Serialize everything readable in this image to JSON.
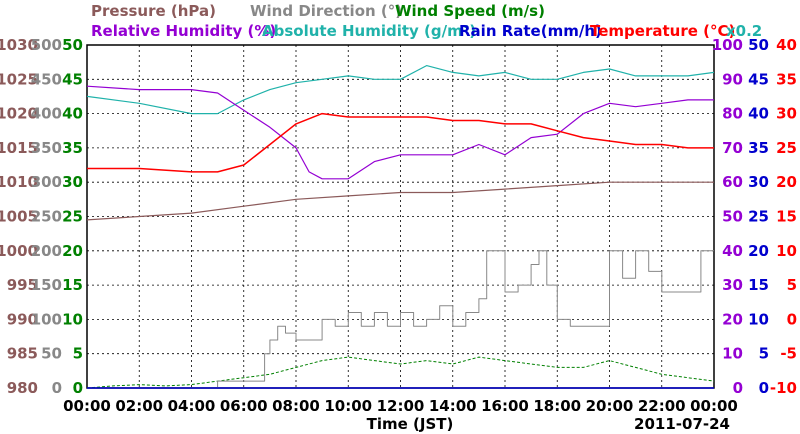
{
  "chart_data": {
    "type": "line",
    "date_label": "2011-07-24",
    "xlabel": "Time (JST)",
    "x_ticks": [
      "00:00",
      "02:00",
      "04:00",
      "06:00",
      "08:00",
      "10:00",
      "12:00",
      "14:00",
      "16:00",
      "18:00",
      "20:00",
      "22:00",
      "00:00"
    ],
    "x_range_hours": [
      0,
      24
    ],
    "grid": true,
    "legend_row1": [
      {
        "name": "Pressure (hPa)",
        "color": "#8b5a5a"
      },
      {
        "name": "Wind Direction (°)",
        "color": "#888888"
      },
      {
        "name": "Wind Speed (m/s)",
        "color": "#008000"
      }
    ],
    "legend_row2": [
      {
        "name": "Relative Humidity (%)",
        "color": "#9400d3"
      },
      {
        "name": "Absolute Humidity (g/m³)",
        "color": "#20b2aa"
      },
      {
        "name": "Rain Rate(mm/h)",
        "color": "#0000cd"
      },
      {
        "name": "Temperature (°C)",
        "color": "#ff0000"
      }
    ],
    "scale_note": "x0.2",
    "axes": {
      "pressure": {
        "color": "#8b5a5a",
        "ticks": [
          "980",
          "985",
          "990",
          "995",
          "1000",
          "1005",
          "1010",
          "1015",
          "1020",
          "1025",
          "1030"
        ],
        "range": [
          980,
          1030
        ]
      },
      "wind_direction": {
        "color": "#888888",
        "ticks": [
          "0",
          "50",
          "100",
          "150",
          "200",
          "250",
          "300",
          "350",
          "400",
          "450",
          "500"
        ],
        "range": [
          0,
          500
        ]
      },
      "wind_speed": {
        "color": "#008000",
        "ticks": [
          "0",
          "5",
          "10",
          "15",
          "20",
          "25",
          "30",
          "35",
          "40",
          "45",
          "50"
        ],
        "range": [
          0,
          50
        ]
      },
      "humidity": {
        "color": "#9400d3",
        "ticks": [
          "0",
          "10",
          "20",
          "30",
          "40",
          "50",
          "60",
          "70",
          "80",
          "90",
          "100"
        ],
        "range": [
          0,
          100
        ]
      },
      "rain_rate": {
        "color": "#0000cd",
        "ticks": [
          "0",
          "5",
          "10",
          "15",
          "20",
          "25",
          "30",
          "35",
          "40",
          "45",
          "50"
        ],
        "range": [
          0,
          50
        ]
      },
      "temperature": {
        "color": "#ff0000",
        "ticks": [
          "-10",
          "-5",
          "0",
          "5",
          "10",
          "15",
          "20",
          "25",
          "30",
          "35",
          "40"
        ],
        "range": [
          -10,
          40
        ]
      }
    },
    "series": [
      {
        "name": "Pressure (hPa)",
        "color": "#8b5a5a",
        "axis": "pressure",
        "x": [
          0,
          2,
          4,
          6,
          8,
          10,
          12,
          14,
          16,
          18,
          20,
          22,
          24
        ],
        "y": [
          1004.5,
          1005,
          1005.5,
          1006.5,
          1007.5,
          1008,
          1008.5,
          1008.5,
          1009,
          1009.5,
          1010,
          1010,
          1010
        ]
      },
      {
        "name": "Wind Direction (°)",
        "color": "#888888",
        "axis": "wind_direction",
        "x": [
          0,
          4.8,
          5,
          6,
          6.8,
          7,
          7.3,
          7.6,
          8,
          8.5,
          9,
          9.5,
          10,
          10.5,
          11,
          11.5,
          12,
          12.5,
          13,
          13.5,
          14,
          14.5,
          15,
          15.3,
          15.6,
          16,
          16.5,
          17,
          17.3,
          17.6,
          18,
          18.5,
          19,
          19.5,
          20,
          20.5,
          21,
          21.5,
          22,
          23,
          23.5,
          24
        ],
        "y": [
          null,
          0,
          10,
          10,
          50,
          70,
          90,
          80,
          70,
          70,
          100,
          90,
          110,
          90,
          110,
          90,
          110,
          90,
          100,
          120,
          90,
          110,
          130,
          200,
          200,
          140,
          150,
          180,
          200,
          150,
          100,
          90,
          90,
          90,
          200,
          160,
          200,
          170,
          140,
          140,
          200,
          200
        ]
      },
      {
        "name": "Wind Speed (m/s)",
        "color": "#008000",
        "axis": "wind_speed",
        "x": [
          0,
          1,
          2,
          3,
          4,
          5,
          6,
          7,
          8,
          9,
          10,
          11,
          12,
          13,
          14,
          15,
          16,
          17,
          18,
          19,
          20,
          21,
          22,
          23,
          24
        ],
        "y": [
          0,
          0.3,
          0.5,
          0.3,
          0.5,
          1,
          1.5,
          2,
          3,
          4,
          4.5,
          4,
          3.5,
          4,
          3.5,
          4.5,
          4,
          3.5,
          3,
          3,
          4,
          3,
          2,
          1.5,
          1
        ]
      },
      {
        "name": "Relative Humidity (%)",
        "color": "#9400d3",
        "axis": "humidity",
        "x": [
          0,
          2,
          4,
          5,
          6,
          7,
          8,
          8.5,
          9,
          10,
          11,
          12,
          13,
          14,
          15,
          16,
          17,
          18,
          19,
          20,
          21,
          22,
          23,
          24
        ],
        "y": [
          88,
          87,
          87,
          86,
          81,
          76,
          70,
          63,
          61,
          61,
          66,
          68,
          68,
          68,
          71,
          68,
          73,
          74,
          80,
          83,
          82,
          83,
          84,
          84
        ]
      },
      {
        "name": "Absolute Humidity (g/m³)",
        "color": "#20b2aa",
        "axis": "humidity",
        "x": [
          0,
          2,
          4,
          5,
          6,
          7,
          8,
          9,
          10,
          11,
          12,
          13,
          14,
          15,
          16,
          17,
          18,
          19,
          20,
          21,
          22,
          23,
          24
        ],
        "y": [
          85,
          83,
          80,
          80,
          84,
          87,
          89,
          90,
          91,
          90,
          90,
          94,
          92,
          91,
          92,
          90,
          90,
          92,
          93,
          91,
          91,
          91,
          92
        ]
      },
      {
        "name": "Rain Rate(mm/h)",
        "color": "#0000cd",
        "axis": "rain_rate",
        "x": [
          0,
          24
        ],
        "y": [
          0,
          0
        ]
      },
      {
        "name": "Temperature (°C)",
        "color": "#ff0000",
        "axis": "temperature",
        "x": [
          0,
          2,
          4,
          5,
          6,
          7,
          8,
          9,
          10,
          11,
          12,
          13,
          14,
          15,
          16,
          17,
          18,
          19,
          20,
          21,
          22,
          23,
          24
        ],
        "y": [
          22,
          22,
          21.5,
          21.5,
          22.5,
          25.5,
          28.5,
          30,
          29.5,
          29.5,
          29.5,
          29.5,
          29,
          29,
          28.5,
          28.5,
          27.5,
          26.5,
          26,
          25.5,
          25.5,
          25,
          25
        ]
      }
    ]
  }
}
